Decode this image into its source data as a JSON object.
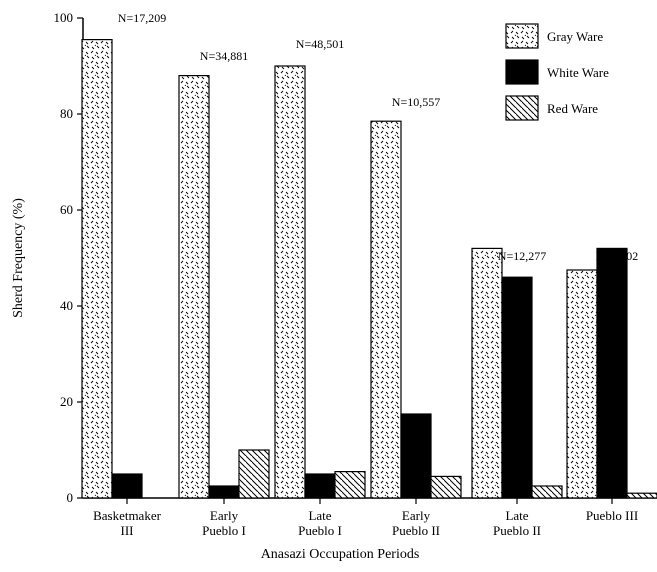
{
  "chart_data": {
    "type": "bar",
    "xlabel": "Anasazi Occupation Periods",
    "ylabel": "Sherd Frequency (%)",
    "ylim": [
      0,
      100
    ],
    "yticks": [
      0,
      20,
      40,
      60,
      80,
      100
    ],
    "grid": false,
    "legend_position": "top-right",
    "categories": [
      [
        "Basketmaker",
        "III"
      ],
      [
        "Early",
        "Pueblo I"
      ],
      [
        "Late",
        "Pueblo I"
      ],
      [
        "Early",
        "Pueblo II"
      ],
      [
        "Late",
        "Pueblo II"
      ],
      [
        "Pueblo III"
      ]
    ],
    "n_labels": [
      "N=17,209",
      "N=34,881",
      "N=48,501",
      "N=10,557",
      "N=12,277",
      "N=7,102"
    ],
    "series": [
      {
        "name": "Gray Ware",
        "pattern": "speckled",
        "values": [
          95.5,
          88,
          90,
          78.5,
          52,
          47.5
        ]
      },
      {
        "name": "White Ware",
        "pattern": "solid",
        "values": [
          5,
          2.5,
          5,
          17.5,
          46,
          52
        ]
      },
      {
        "name": "Red Ware",
        "pattern": "hatched",
        "values": [
          null,
          10,
          5.5,
          4.5,
          2.5,
          1
        ]
      }
    ]
  }
}
